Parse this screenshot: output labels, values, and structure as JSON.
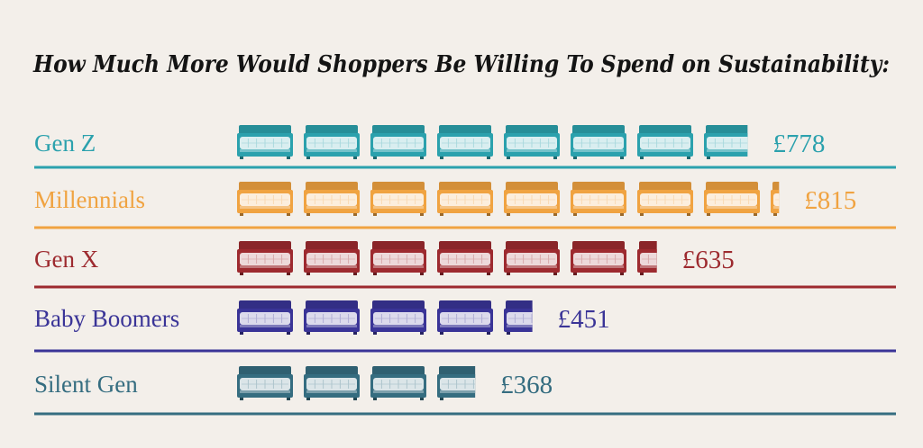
{
  "chart_data": {
    "type": "bar",
    "title": "How Much More Would Shoppers Be Willing To Spend on Sustainability:",
    "xlabel": "",
    "ylabel": "",
    "unit_icon": "bed-icon",
    "orientation": "horizontal",
    "grid": false,
    "legend": "none",
    "xlim": [
      0,
      815
    ],
    "categories": [
      "Gen Z",
      "Millennials",
      "Gen X",
      "Baby Boomers",
      "Silent Gen"
    ],
    "values": [
      778,
      815,
      635,
      451,
      368
    ],
    "value_labels": [
      "£778",
      "£815",
      "£635",
      "£451",
      "£368"
    ],
    "colors": [
      "#2ba1ad",
      "#f0a341",
      "#9d2a2f",
      "#3a3497",
      "#356d80"
    ]
  }
}
